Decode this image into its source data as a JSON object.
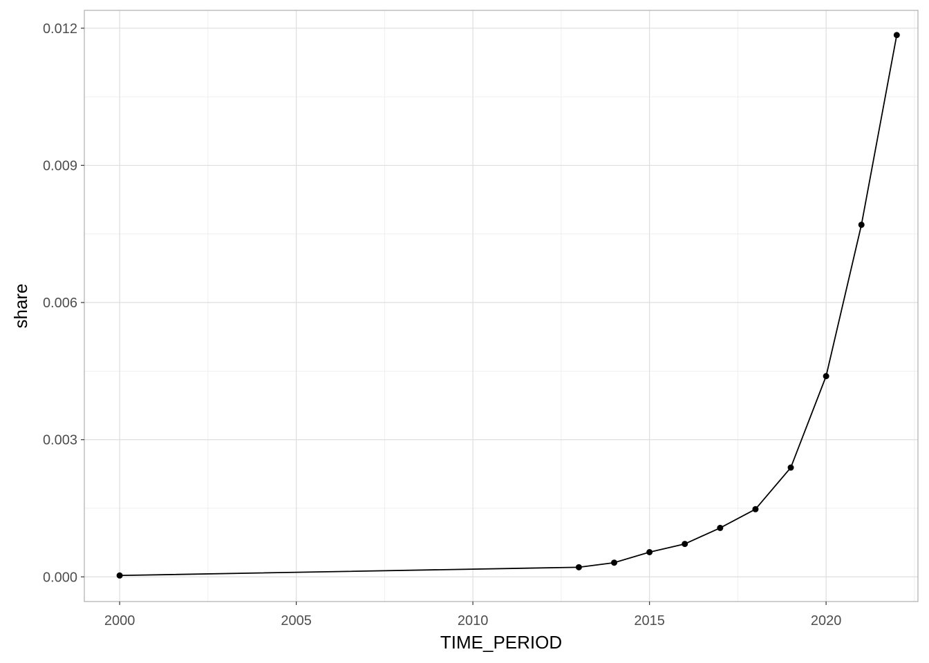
{
  "chart_data": {
    "type": "line",
    "title": "",
    "xlabel": "TIME_PERIOD",
    "ylabel": "share",
    "x": [
      2000,
      2013,
      2014,
      2015,
      2016,
      2017,
      2018,
      2019,
      2020,
      2021,
      2022
    ],
    "series": [
      {
        "values": [
          3e-05,
          0.00021,
          0.00031,
          0.00054,
          0.00072,
          0.00107,
          0.00148,
          0.00239,
          0.00439,
          0.0077,
          0.01185
        ]
      }
    ],
    "xlim": [
      1999,
      2022.6
    ],
    "ylim": [
      -0.00054,
      0.01239
    ],
    "x_ticks": [
      2000,
      2005,
      2010,
      2015,
      2020
    ],
    "x_tick_labels": [
      "2000",
      "2005",
      "2010",
      "2015",
      "2020"
    ],
    "y_ticks": [
      0,
      0.003,
      0.006,
      0.009,
      0.012
    ],
    "y_tick_labels": [
      "0.000",
      "0.003",
      "0.006",
      "0.009",
      "0.012"
    ],
    "grid": true,
    "legend": "none",
    "colors": {
      "line": "#000000",
      "points": "#000000",
      "grid": "#ebebeb",
      "panel_border": "#b3b3b3"
    }
  }
}
